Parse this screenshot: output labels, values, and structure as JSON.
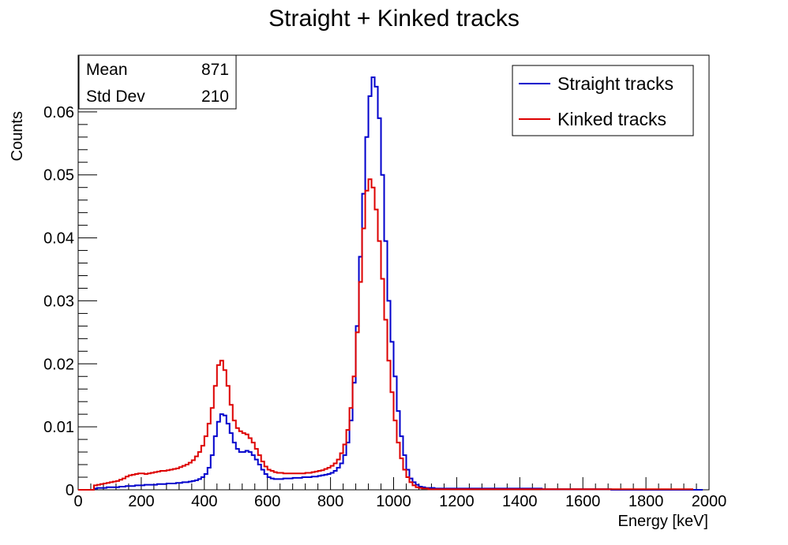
{
  "chart_data": {
    "type": "line",
    "title": "Straight + Kinked tracks",
    "xlabel": "Energy [keV]",
    "ylabel": "Counts",
    "xlim": [
      0,
      2000
    ],
    "ylim": [
      0,
      0.069
    ],
    "x_ticks": [
      0,
      200,
      400,
      600,
      800,
      1000,
      1200,
      1400,
      1600,
      1800,
      2000
    ],
    "x_tick_labels": [
      "0",
      "200",
      "400",
      "600",
      "800",
      "1000",
      "1200",
      "1400",
      "1600",
      "1800",
      "2000"
    ],
    "y_ticks": [
      0,
      0.01,
      0.02,
      0.03,
      0.04,
      0.05,
      0.06
    ],
    "y_tick_labels": [
      "0",
      "0.01",
      "0.02",
      "0.03",
      "0.04",
      "0.05",
      "0.06"
    ],
    "grid": false,
    "legend_position": "top-right",
    "stats": [
      {
        "label": "Mean",
        "value": "871"
      },
      {
        "label": "Std Dev",
        "value": "210"
      }
    ],
    "bin_width": 10,
    "x_start": 0,
    "series": [
      {
        "name": "Straight tracks",
        "color": "#0000cc",
        "values": [
          0,
          0,
          0,
          0,
          0,
          0.0002,
          0.0003,
          0.0003,
          0.0003,
          0.0004,
          0.0004,
          0.0004,
          0.0004,
          0.0005,
          0.0005,
          0.0006,
          0.0006,
          0.0006,
          0.0007,
          0.0007,
          0.0007,
          0.0008,
          0.0008,
          0.0008,
          0.0008,
          0.0009,
          0.0009,
          0.0009,
          0.001,
          0.001,
          0.001,
          0.0011,
          0.0011,
          0.0012,
          0.0012,
          0.0013,
          0.0014,
          0.0015,
          0.0017,
          0.002,
          0.0025,
          0.0035,
          0.0055,
          0.0085,
          0.0108,
          0.012,
          0.0118,
          0.0105,
          0.009,
          0.0075,
          0.0065,
          0.006,
          0.006,
          0.0062,
          0.006,
          0.0055,
          0.0048,
          0.004,
          0.0032,
          0.0025,
          0.002,
          0.0018,
          0.0017,
          0.0017,
          0.0017,
          0.0018,
          0.0018,
          0.0018,
          0.0019,
          0.0019,
          0.0019,
          0.002,
          0.002,
          0.002,
          0.0021,
          0.0021,
          0.0022,
          0.0023,
          0.0024,
          0.0025,
          0.0027,
          0.003,
          0.0035,
          0.0042,
          0.0055,
          0.0075,
          0.011,
          0.017,
          0.026,
          0.037,
          0.047,
          0.056,
          0.0625,
          0.0655,
          0.064,
          0.059,
          0.05,
          0.0395,
          0.03,
          0.0235,
          0.018,
          0.0125,
          0.0085,
          0.0055,
          0.0032,
          0.0018,
          0.0012,
          0.0008,
          0.0005,
          0.0004,
          0.0003,
          0.0003,
          0.0003,
          0.0002,
          0.0002,
          0.0002,
          0.0002,
          0.0002,
          0.0002,
          0.0002,
          0.0002,
          0.0002,
          0.0002,
          0.0002,
          0.0002,
          0.0002,
          0.0002,
          0.0002,
          0.0002,
          0.0002,
          0.0002,
          0.0002,
          0.0002,
          0.0002,
          0.0002,
          0.0002,
          0.0002,
          0.0002,
          0.0002,
          0.0002,
          0.0002,
          0.0002,
          0.0002,
          0.0002,
          0.0002,
          0.0002,
          0.0002,
          0.0001,
          0.0001,
          0.0001,
          0.0001,
          0.0001,
          0.0001,
          0.0001,
          0.0001,
          0.0001,
          0.0001,
          0.0001,
          0.0001,
          0.0001,
          0.0001,
          0.0001,
          0.0001,
          0.0001,
          0.0001,
          0.0001,
          0.0001,
          0.0001,
          0.0001,
          0,
          0,
          0,
          0,
          0,
          0,
          0,
          0,
          0,
          0,
          0,
          0,
          0,
          0,
          0,
          0,
          0,
          0,
          0,
          0,
          0,
          0,
          0,
          0,
          0,
          0,
          0,
          0,
          0
        ]
      },
      {
        "name": "Kinked tracks",
        "color": "#dd0000",
        "values": [
          0,
          0,
          0,
          0,
          0,
          0.0007,
          0.0008,
          0.0009,
          0.001,
          0.0011,
          0.0012,
          0.0013,
          0.0014,
          0.0016,
          0.0018,
          0.0021,
          0.0023,
          0.0024,
          0.0025,
          0.0026,
          0.0026,
          0.0025,
          0.0026,
          0.0027,
          0.0028,
          0.0029,
          0.003,
          0.003,
          0.0031,
          0.0032,
          0.0033,
          0.0034,
          0.0036,
          0.0038,
          0.004,
          0.0043,
          0.0047,
          0.0053,
          0.006,
          0.007,
          0.0085,
          0.0105,
          0.013,
          0.0165,
          0.0198,
          0.0205,
          0.019,
          0.0165,
          0.0135,
          0.011,
          0.0098,
          0.0093,
          0.009,
          0.0088,
          0.0082,
          0.0075,
          0.0065,
          0.0055,
          0.0045,
          0.0037,
          0.0032,
          0.003,
          0.0028,
          0.0027,
          0.0027,
          0.0026,
          0.0026,
          0.0026,
          0.0026,
          0.0026,
          0.0026,
          0.0026,
          0.0027,
          0.0027,
          0.0028,
          0.0029,
          0.003,
          0.0031,
          0.0033,
          0.0035,
          0.0038,
          0.0042,
          0.0048,
          0.0058,
          0.0072,
          0.0095,
          0.013,
          0.018,
          0.025,
          0.033,
          0.0415,
          0.0475,
          0.0493,
          0.048,
          0.0445,
          0.0395,
          0.0335,
          0.027,
          0.0205,
          0.0155,
          0.011,
          0.0075,
          0.005,
          0.0032,
          0.002,
          0.0012,
          0.0007,
          0.0004,
          0.0003,
          0.0002,
          0.0002,
          0.0001,
          0.0001,
          0.0001,
          0.0001,
          0.0001,
          0.0001,
          0.0001,
          0.0001,
          0.0001,
          0.0001,
          0.0001,
          0.0001,
          0.0001,
          0.0001,
          0.0001,
          0.0001,
          0.0001,
          0.0001,
          0.0001,
          0.0001,
          0.0001,
          0.0001,
          0.0001,
          0.0001,
          0.0001,
          0.0001,
          0.0001,
          0.0001,
          0.0001,
          0.0001,
          0.0001,
          0.0001,
          0.0001,
          0.0001,
          0.0001,
          0.0001,
          0.0001,
          0.0001,
          0.0001,
          0.0001,
          0.0001,
          0.0001,
          0.0001,
          0.0001,
          0.0001,
          0.0001,
          0.0001,
          0.0001,
          0.0001,
          0.0001,
          0.0001,
          0.0001,
          0.0001,
          0.0001,
          0.0001,
          0.0001,
          0.0001,
          0.0001,
          0.0001,
          0.0001,
          0.0001,
          0.0001,
          0.0001,
          0.0001,
          0.0001,
          0.0001,
          0.0001,
          0.0001,
          0.0001,
          0.0001,
          0.0001,
          0.0001,
          0.0001,
          0.0001,
          0.0001,
          0.0001,
          0.0001,
          0.0001,
          0.0001,
          0.0001,
          0.0001,
          0.0001,
          0.0001,
          0.0001
        ]
      }
    ]
  }
}
